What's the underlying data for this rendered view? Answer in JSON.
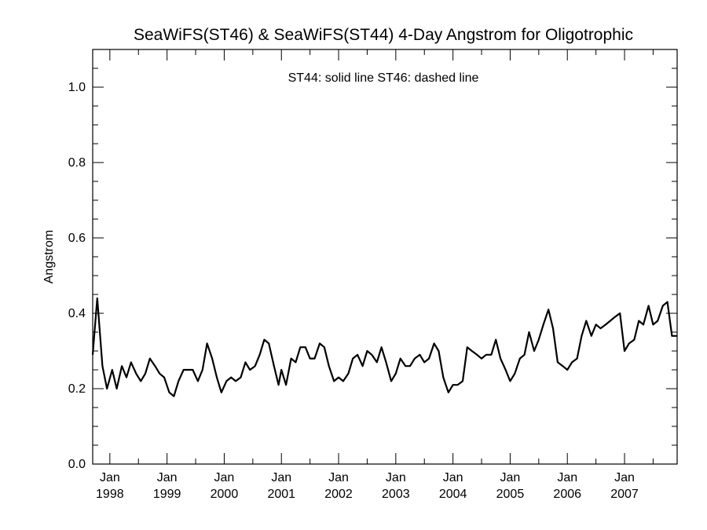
{
  "chart_data": {
    "type": "line",
    "title": "SeaWiFS(ST46) & SeaWiFS(ST44) 4-Day Angstrom for Oligotrophic",
    "annotation": "ST44: solid line   ST46: dashed line",
    "ylabel": "Angstrom",
    "xlabel": "",
    "ylim": [
      0.0,
      1.1
    ],
    "xlim": [
      1997.7,
      2007.92
    ],
    "yticks": [
      {
        "value": 0.0,
        "label": "0.0"
      },
      {
        "value": 0.2,
        "label": "0.2"
      },
      {
        "value": 0.4,
        "label": "0.4"
      },
      {
        "value": 0.6,
        "label": "0.6"
      },
      {
        "value": 0.8,
        "label": "0.8"
      },
      {
        "value": 1.0,
        "label": "1.0"
      }
    ],
    "yminor_step": 0.05,
    "xticks": [
      {
        "value": 1998.0,
        "month": "Jan",
        "year": "1998"
      },
      {
        "value": 1999.0,
        "month": "Jan",
        "year": "1999"
      },
      {
        "value": 2000.0,
        "month": "Jan",
        "year": "2000"
      },
      {
        "value": 2001.0,
        "month": "Jan",
        "year": "2001"
      },
      {
        "value": 2002.0,
        "month": "Jan",
        "year": "2002"
      },
      {
        "value": 2003.0,
        "month": "Jan",
        "year": "2003"
      },
      {
        "value": 2004.0,
        "month": "Jan",
        "year": "2004"
      },
      {
        "value": 2005.0,
        "month": "Jan",
        "year": "2005"
      },
      {
        "value": 2006.0,
        "month": "Jan",
        "year": "2006"
      },
      {
        "value": 2007.0,
        "month": "Jan",
        "year": "2007"
      }
    ],
    "grid": false,
    "series": [
      {
        "name": "ST44",
        "style": "solid",
        "color": "#000000",
        "x": [
          1997.7,
          1997.78,
          1997.87,
          1997.95,
          1998.04,
          1998.12,
          1998.21,
          1998.29,
          1998.37,
          1998.46,
          1998.54,
          1998.62,
          1998.7,
          1998.79,
          1998.87,
          1998.95,
          1999.04,
          1999.12,
          1999.2,
          1999.29,
          1999.37,
          1999.45,
          1999.54,
          1999.62,
          1999.7,
          1999.79,
          1999.87,
          1999.95,
          2000.04,
          2000.12,
          2000.2,
          2000.29,
          2000.37,
          2000.45,
          2000.54,
          2000.62,
          2000.7,
          2000.78,
          2000.87,
          2000.95,
          2001.0,
          2001.08,
          2001.17,
          2001.25,
          2001.33,
          2001.42,
          2001.5,
          2001.58,
          2001.67,
          2001.75,
          2001.83,
          2001.92,
          2002.0,
          2002.08,
          2002.17,
          2002.25,
          2002.33,
          2002.42,
          2002.5,
          2002.58,
          2002.67,
          2002.75,
          2002.83,
          2002.92,
          2003.0,
          2003.08,
          2003.17,
          2003.25,
          2003.33,
          2003.42,
          2003.5,
          2003.58,
          2003.67,
          2003.75,
          2003.83,
          2003.92,
          2004.0,
          2004.08,
          2004.17,
          2004.25,
          2004.33,
          2004.42,
          2004.5,
          2004.58,
          2004.67,
          2004.75,
          2004.83,
          2004.92,
          2005.0,
          2005.08,
          2005.17,
          2005.25,
          2005.33,
          2005.42,
          2005.5,
          2005.58,
          2005.67,
          2005.75,
          2005.83,
          2005.92,
          2006.0,
          2006.08,
          2006.17,
          2006.25,
          2006.33,
          2006.42,
          2006.5,
          2006.58,
          2006.67,
          2006.75,
          2006.83,
          2006.92,
          2007.0,
          2007.08,
          2007.17,
          2007.25,
          2007.33,
          2007.42,
          2007.5,
          2007.58,
          2007.67,
          2007.75,
          2007.83,
          2007.92
        ],
        "y": [
          0.29,
          0.44,
          0.26,
          0.2,
          0.25,
          0.2,
          0.26,
          0.23,
          0.27,
          0.24,
          0.22,
          0.24,
          0.28,
          0.26,
          0.24,
          0.23,
          0.19,
          0.18,
          0.22,
          0.25,
          0.25,
          0.25,
          0.22,
          0.25,
          0.32,
          0.28,
          0.23,
          0.19,
          0.22,
          0.23,
          0.22,
          0.23,
          0.27,
          0.25,
          0.26,
          0.29,
          0.33,
          0.32,
          0.26,
          0.21,
          0.25,
          0.21,
          0.28,
          0.27,
          0.31,
          0.31,
          0.28,
          0.28,
          0.32,
          0.31,
          0.26,
          0.22,
          0.23,
          0.22,
          0.24,
          0.28,
          0.29,
          0.26,
          0.3,
          0.29,
          0.27,
          0.31,
          0.27,
          0.22,
          0.24,
          0.28,
          0.26,
          0.26,
          0.28,
          0.29,
          0.27,
          0.28,
          0.32,
          0.3,
          0.23,
          0.19,
          0.21,
          0.21,
          0.22,
          0.31,
          0.3,
          0.29,
          0.28,
          0.29,
          0.29,
          0.33,
          0.28,
          0.25,
          0.22,
          0.24,
          0.28,
          0.29,
          0.35,
          0.3,
          0.33,
          0.37,
          0.41,
          0.36,
          0.27,
          0.26,
          0.25,
          0.27,
          0.28,
          0.34,
          0.38,
          0.34,
          0.37,
          0.36,
          0.37,
          0.38,
          0.39,
          0.4,
          0.3,
          0.32,
          0.33,
          0.38,
          0.37,
          0.42,
          0.37,
          0.38,
          0.42,
          0.43,
          0.34,
          0.34
        ]
      }
    ]
  }
}
